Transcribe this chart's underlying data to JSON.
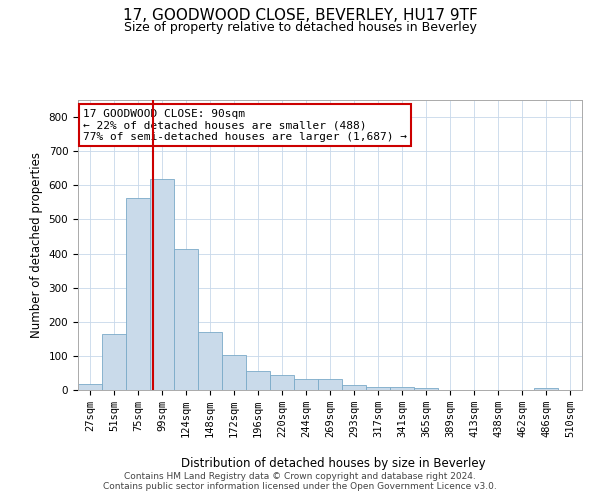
{
  "title": "17, GOODWOOD CLOSE, BEVERLEY, HU17 9TF",
  "subtitle": "Size of property relative to detached houses in Beverley",
  "xlabel": "Distribution of detached houses by size in Beverley",
  "ylabel": "Number of detached properties",
  "categories": [
    "27sqm",
    "51sqm",
    "75sqm",
    "99sqm",
    "124sqm",
    "148sqm",
    "172sqm",
    "196sqm",
    "220sqm",
    "244sqm",
    "269sqm",
    "293sqm",
    "317sqm",
    "341sqm",
    "365sqm",
    "389sqm",
    "413sqm",
    "438sqm",
    "462sqm",
    "486sqm",
    "510sqm"
  ],
  "values": [
    18,
    163,
    563,
    617,
    413,
    170,
    102,
    57,
    44,
    33,
    33,
    15,
    10,
    9,
    5,
    0,
    0,
    0,
    0,
    6,
    0
  ],
  "bar_color": "#c9daea",
  "bar_edge_color": "#7aaac8",
  "vline_x": 2.625,
  "vline_color": "#cc0000",
  "annotation_text": "17 GOODWOOD CLOSE: 90sqm\n← 22% of detached houses are smaller (488)\n77% of semi-detached houses are larger (1,687) →",
  "annotation_box_color": "#ffffff",
  "annotation_box_edge": "#cc0000",
  "ylim": [
    0,
    850
  ],
  "yticks": [
    0,
    100,
    200,
    300,
    400,
    500,
    600,
    700,
    800
  ],
  "footer1": "Contains HM Land Registry data © Crown copyright and database right 2024.",
  "footer2": "Contains public sector information licensed under the Open Government Licence v3.0.",
  "title_fontsize": 11,
  "subtitle_fontsize": 9,
  "axis_label_fontsize": 8.5,
  "tick_fontsize": 7.5,
  "footer_fontsize": 6.5,
  "annot_fontsize": 8
}
